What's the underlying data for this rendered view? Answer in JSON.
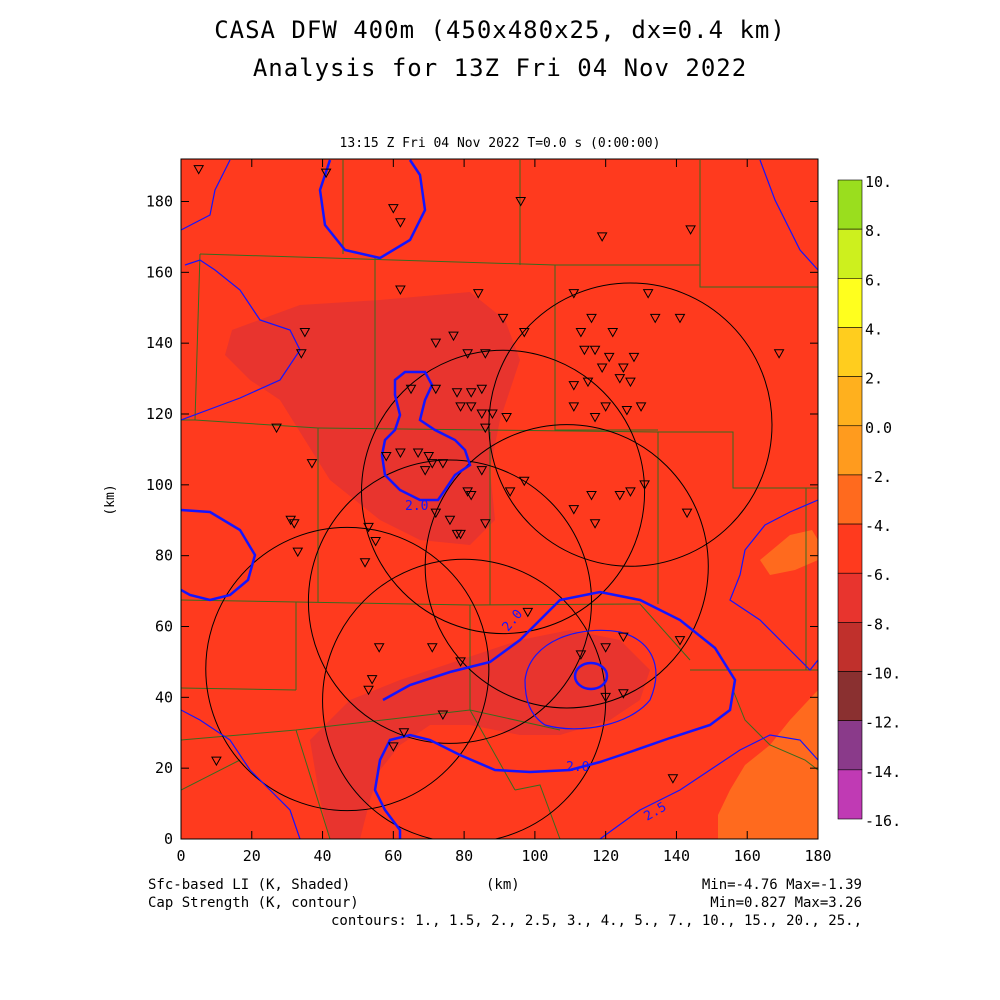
{
  "header": {
    "title_line1": "CASA DFW 400m (450x480x25, dx=0.4 km)",
    "title_line2": "Analysis for 13Z Fri 04 Nov 2022",
    "subtitle": "13:15 Z Fri 04 Nov 2022    T=0.0 s (0:00:00)"
  },
  "axes": {
    "x_label": "(km)",
    "y_label": "(km)",
    "x_ticks": [
      "0",
      "20",
      "40",
      "60",
      "80",
      "100",
      "120",
      "140",
      "160",
      "180"
    ],
    "y_ticks": [
      "0",
      "20",
      "40",
      "60",
      "80",
      "100",
      "120",
      "140",
      "160",
      "180"
    ],
    "x_range": [
      0,
      180
    ],
    "y_range": [
      0,
      192
    ]
  },
  "colorbar": {
    "labels": [
      "10.",
      "8.",
      "6.",
      "4.",
      "2.",
      "0.0",
      "-2.",
      "-4.",
      "-6.",
      "-8.",
      "-10.",
      "-12.",
      "-14.",
      "-16."
    ],
    "colors": [
      "#9ade1e",
      "#cdf01e",
      "#ffff1e",
      "#ffcd1e",
      "#ffb01e",
      "#ff9b1e",
      "#ff6a1e",
      "#ff3a1e",
      "#e8342e",
      "#c0302c",
      "#8a3030",
      "#8a3a8a",
      "#c03ab4",
      "#e04ae0"
    ]
  },
  "footer": {
    "field1": "Sfc-based LI (K, Shaded)",
    "field2": "Cap Strength (K, contour)",
    "x_unit": "(km)",
    "range1": "Min=-4.76 Max=-1.39",
    "range2": "Min=0.827 Max=3.26",
    "contours": "contours: 1., 1.5, 2., 2.5, 3., 4., 5., 7., 10., 15., 20., 25.,"
  },
  "contour_labels": [
    "2.0",
    "2.0",
    "2.0",
    "2.5"
  ],
  "style": {
    "background_field": "#ff3a1e",
    "darker_field": "#e8342e",
    "orange_field": "#ff6a1e",
    "contour_color": "#1414ff",
    "county_lines": "#3a6a1e"
  },
  "radar_rings": [
    {
      "x": 127,
      "y": 117
    },
    {
      "x": 91,
      "y": 98
    },
    {
      "x": 76,
      "y": 67
    },
    {
      "x": 109,
      "y": 77
    },
    {
      "x": 47,
      "y": 48
    },
    {
      "x": 80,
      "y": 39
    }
  ],
  "stations": [
    [
      5,
      189
    ],
    [
      41,
      188
    ],
    [
      60,
      178
    ],
    [
      62,
      174
    ],
    [
      96,
      180
    ],
    [
      119,
      170
    ],
    [
      144,
      172
    ],
    [
      62,
      155
    ],
    [
      84,
      154
    ],
    [
      35,
      143
    ],
    [
      34,
      137
    ],
    [
      72,
      140
    ],
    [
      77,
      142
    ],
    [
      91,
      147
    ],
    [
      97,
      143
    ],
    [
      81,
      137
    ],
    [
      86,
      137
    ],
    [
      111,
      154
    ],
    [
      113,
      143
    ],
    [
      116,
      147
    ],
    [
      122,
      143
    ],
    [
      114,
      138
    ],
    [
      117,
      138
    ],
    [
      111,
      128
    ],
    [
      115,
      129
    ],
    [
      119,
      133
    ],
    [
      121,
      136
    ],
    [
      124,
      130
    ],
    [
      125,
      133
    ],
    [
      128,
      136
    ],
    [
      127,
      129
    ],
    [
      65,
      127
    ],
    [
      72,
      127
    ],
    [
      78,
      126
    ],
    [
      82,
      126
    ],
    [
      85,
      127
    ],
    [
      79,
      122
    ],
    [
      82,
      122
    ],
    [
      85,
      120
    ],
    [
      88,
      120
    ],
    [
      92,
      119
    ],
    [
      86,
      116
    ],
    [
      111,
      122
    ],
    [
      120,
      122
    ],
    [
      117,
      119
    ],
    [
      126,
      121
    ],
    [
      130,
      122
    ],
    [
      27,
      116
    ],
    [
      37,
      106
    ],
    [
      58,
      108
    ],
    [
      62,
      109
    ],
    [
      67,
      109
    ],
    [
      70,
      108
    ],
    [
      71,
      106
    ],
    [
      74,
      106
    ],
    [
      69,
      104
    ],
    [
      85,
      104
    ],
    [
      93,
      98
    ],
    [
      97,
      101
    ],
    [
      81,
      98
    ],
    [
      82,
      97
    ],
    [
      116,
      97
    ],
    [
      124,
      97
    ],
    [
      127,
      98
    ],
    [
      131,
      100
    ],
    [
      111,
      93
    ],
    [
      117,
      89
    ],
    [
      143,
      92
    ],
    [
      169,
      137
    ],
    [
      132,
      154
    ],
    [
      134,
      147
    ],
    [
      141,
      147
    ],
    [
      31,
      90
    ],
    [
      32,
      89
    ],
    [
      33,
      81
    ],
    [
      53,
      88
    ],
    [
      55,
      84
    ],
    [
      52,
      78
    ],
    [
      72,
      92
    ],
    [
      76,
      90
    ],
    [
      78,
      86
    ],
    [
      79,
      86
    ],
    [
      86,
      89
    ],
    [
      98,
      64
    ],
    [
      125,
      57
    ],
    [
      141,
      56
    ],
    [
      113,
      52
    ],
    [
      120,
      54
    ],
    [
      56,
      54
    ],
    [
      71,
      54
    ],
    [
      79,
      50
    ],
    [
      53,
      42
    ],
    [
      54,
      45
    ],
    [
      74,
      35
    ],
    [
      120,
      40
    ],
    [
      125,
      41
    ],
    [
      139,
      17
    ],
    [
      10,
      22
    ],
    [
      60,
      26
    ],
    [
      63,
      30
    ]
  ]
}
